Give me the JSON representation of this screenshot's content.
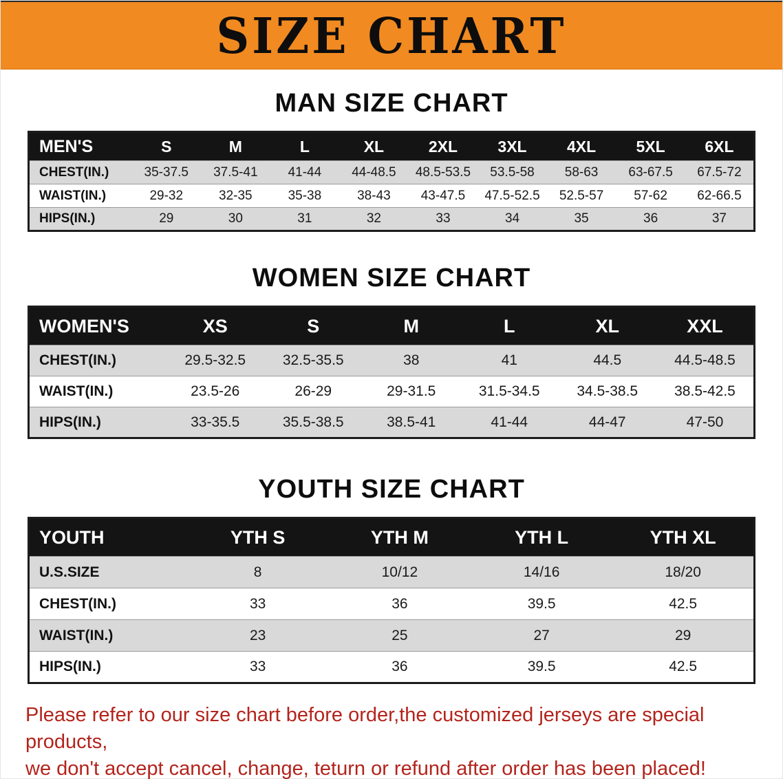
{
  "banner": {
    "title": "SIZE CHART",
    "bg_color": "#F18A21"
  },
  "sections": [
    {
      "heading": "MAN SIZE CHART",
      "table": {
        "header": [
          "MEN'S",
          "S",
          "M",
          "L",
          "XL",
          "2XL",
          "3XL",
          "4XL",
          "5XL",
          "6XL"
        ],
        "rows": [
          {
            "label": "CHEST(IN.)",
            "values": [
              "35-37.5",
              "37.5-41",
              "41-44",
              "44-48.5",
              "48.5-53.5",
              "53.5-58",
              "58-63",
              "63-67.5",
              "67.5-72"
            ]
          },
          {
            "label": "WAIST(IN.)",
            "values": [
              "29-32",
              "32-35",
              "35-38",
              "38-43",
              "43-47.5",
              "47.5-52.5",
              "52.5-57",
              "57-62",
              "62-66.5"
            ]
          },
          {
            "label": "HIPS(IN.)",
            "values": [
              "29",
              "30",
              "31",
              "32",
              "33",
              "34",
              "35",
              "36",
              "37"
            ]
          }
        ]
      }
    },
    {
      "heading": "WOMEN SIZE CHART",
      "table": {
        "header": [
          "WOMEN'S",
          "XS",
          "S",
          "M",
          "L",
          "XL",
          "XXL"
        ],
        "rows": [
          {
            "label": "CHEST(IN.)",
            "values": [
              "29.5-32.5",
              "32.5-35.5",
              "38",
              "41",
              "44.5",
              "44.5-48.5"
            ]
          },
          {
            "label": "WAIST(IN.)",
            "values": [
              "23.5-26",
              "26-29",
              "29-31.5",
              "31.5-34.5",
              "34.5-38.5",
              "38.5-42.5"
            ]
          },
          {
            "label": "HIPS(IN.)",
            "values": [
              "33-35.5",
              "35.5-38.5",
              "38.5-41",
              "41-44",
              "44-47",
              "47-50"
            ]
          }
        ]
      }
    },
    {
      "heading": "YOUTH SIZE CHART",
      "table": {
        "header": [
          "YOUTH",
          "YTH S",
          "YTH M",
          "YTH L",
          "YTH XL"
        ],
        "rows": [
          {
            "label": "U.S.SIZE",
            "values": [
              "8",
              "10/12",
              "14/16",
              "18/20"
            ]
          },
          {
            "label": "CHEST(IN.)",
            "values": [
              "33",
              "36",
              "39.5",
              "42.5"
            ]
          },
          {
            "label": "WAIST(IN.)",
            "values": [
              "23",
              "25",
              "27",
              "29"
            ]
          },
          {
            "label": "HIPS(IN.)",
            "values": [
              "33",
              "36",
              "39.5",
              "42.5"
            ]
          }
        ]
      }
    }
  ],
  "footer_note": {
    "line1": "Please refer to our size chart before order,the customized jerseys are special products,",
    "line2": "we don't accept cancel, change, teturn or refund after order has been placed!",
    "color": "#B3241C"
  }
}
